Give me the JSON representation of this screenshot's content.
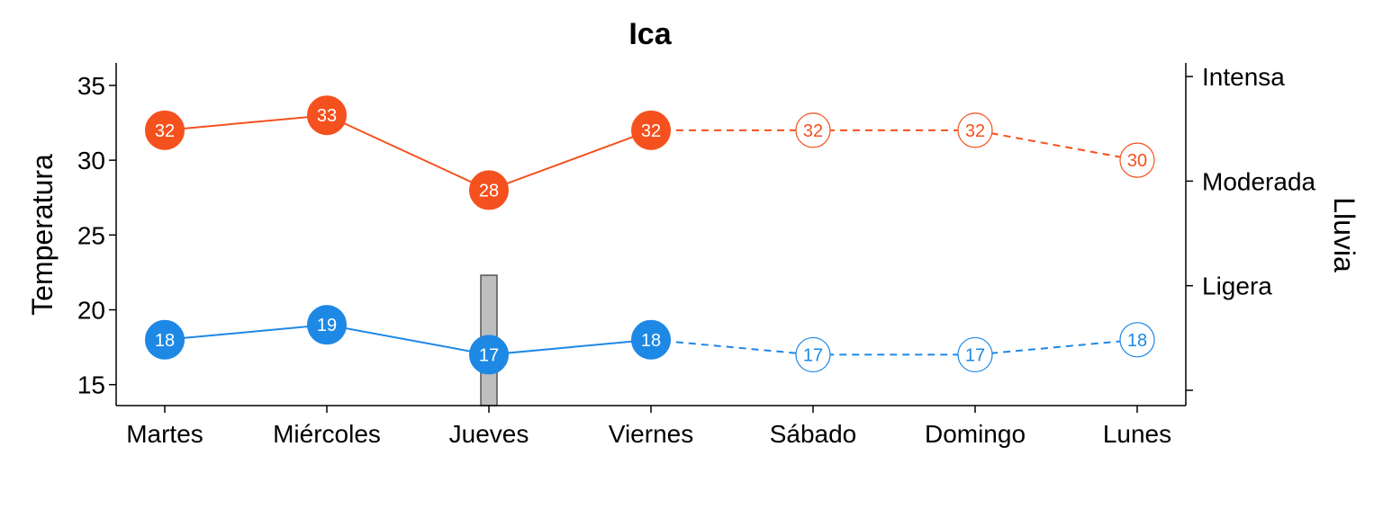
{
  "chart_data": {
    "type": "line",
    "title": "Ica",
    "ylabel": "Temperatura",
    "y2label": "Lluvia",
    "categories": [
      "Martes",
      "Miércoles",
      "Jueves",
      "Viernes",
      "Sábado",
      "Domingo",
      "Lunes"
    ],
    "ylim": [
      13.6,
      36.5
    ],
    "yticks": [
      15,
      20,
      25,
      30,
      35
    ],
    "y2ticks": [
      "",
      "Ligera",
      "Moderada",
      "Intensa"
    ],
    "series": [
      {
        "values": [
          32,
          33,
          28,
          32,
          32,
          32,
          30
        ],
        "color": "#F4511E",
        "observed_count": 4
      },
      {
        "values": [
          18,
          19,
          17,
          18,
          17,
          17,
          18
        ],
        "color": "#1E88E5",
        "observed_count": 4
      }
    ],
    "rain_bars": [
      {
        "category": "Jueves",
        "level": 1.1
      }
    ],
    "rain_bar_color": "#BEBEBE",
    "grid": false,
    "legend": "none"
  }
}
